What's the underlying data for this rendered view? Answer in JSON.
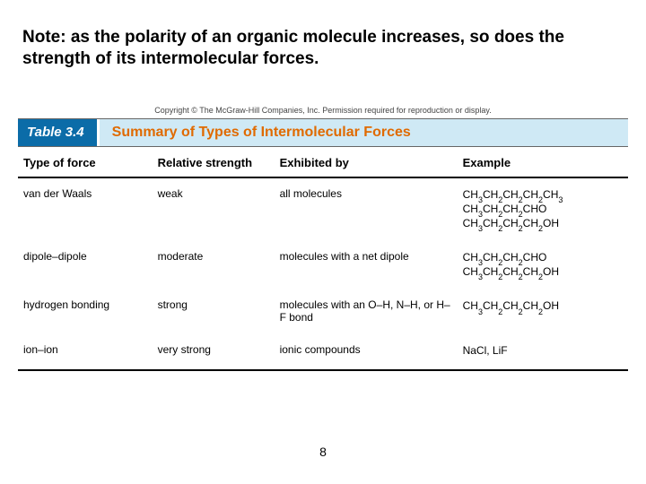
{
  "note_text": "Note: as the polarity of an organic molecule increases, so does the strength of its intermolecular forces.",
  "copyright": "Copyright © The McGraw-Hill Companies, Inc. Permission required for reproduction or display.",
  "table_header": {
    "tab_label": "Table 3.4",
    "title": "Summary of Types of Intermolecular Forces",
    "tab_bg": "#0b6ca8",
    "tab_text_color": "#ffffff",
    "title_bg": "#cfe9f5",
    "title_color": "#e06a00"
  },
  "columns": {
    "type": "Type of force",
    "strength": "Relative strength",
    "exhibited": "Exhibited by",
    "example": "Example"
  },
  "rows": [
    {
      "type": "van der Waals",
      "strength": "weak",
      "exhibited": "all molecules",
      "examples_html": "CH<sub>3</sub>CH<sub>2</sub>CH<sub>2</sub>CH<sub>2</sub>CH<sub>3</sub>|CH<sub>3</sub>CH<sub>2</sub>CH<sub>2</sub>CHO|CH<sub>3</sub>CH<sub>2</sub>CH<sub>2</sub>CH<sub>2</sub>OH"
    },
    {
      "type": "dipole–dipole",
      "strength": "moderate",
      "exhibited": "molecules with a net dipole",
      "examples_html": "CH<sub>3</sub>CH<sub>2</sub>CH<sub>2</sub>CHO|CH<sub>3</sub>CH<sub>2</sub>CH<sub>2</sub>CH<sub>2</sub>OH"
    },
    {
      "type": "hydrogen bonding",
      "strength": "strong",
      "exhibited": "molecules with an O–H, N–H, or H–F bond",
      "examples_html": "CH<sub>3</sub>CH<sub>2</sub>CH<sub>2</sub>CH<sub>2</sub>OH"
    },
    {
      "type": "ion–ion",
      "strength": "very strong",
      "exhibited": "ionic compounds",
      "examples_html": "NaCl, LiF"
    }
  ],
  "page_number": "8"
}
